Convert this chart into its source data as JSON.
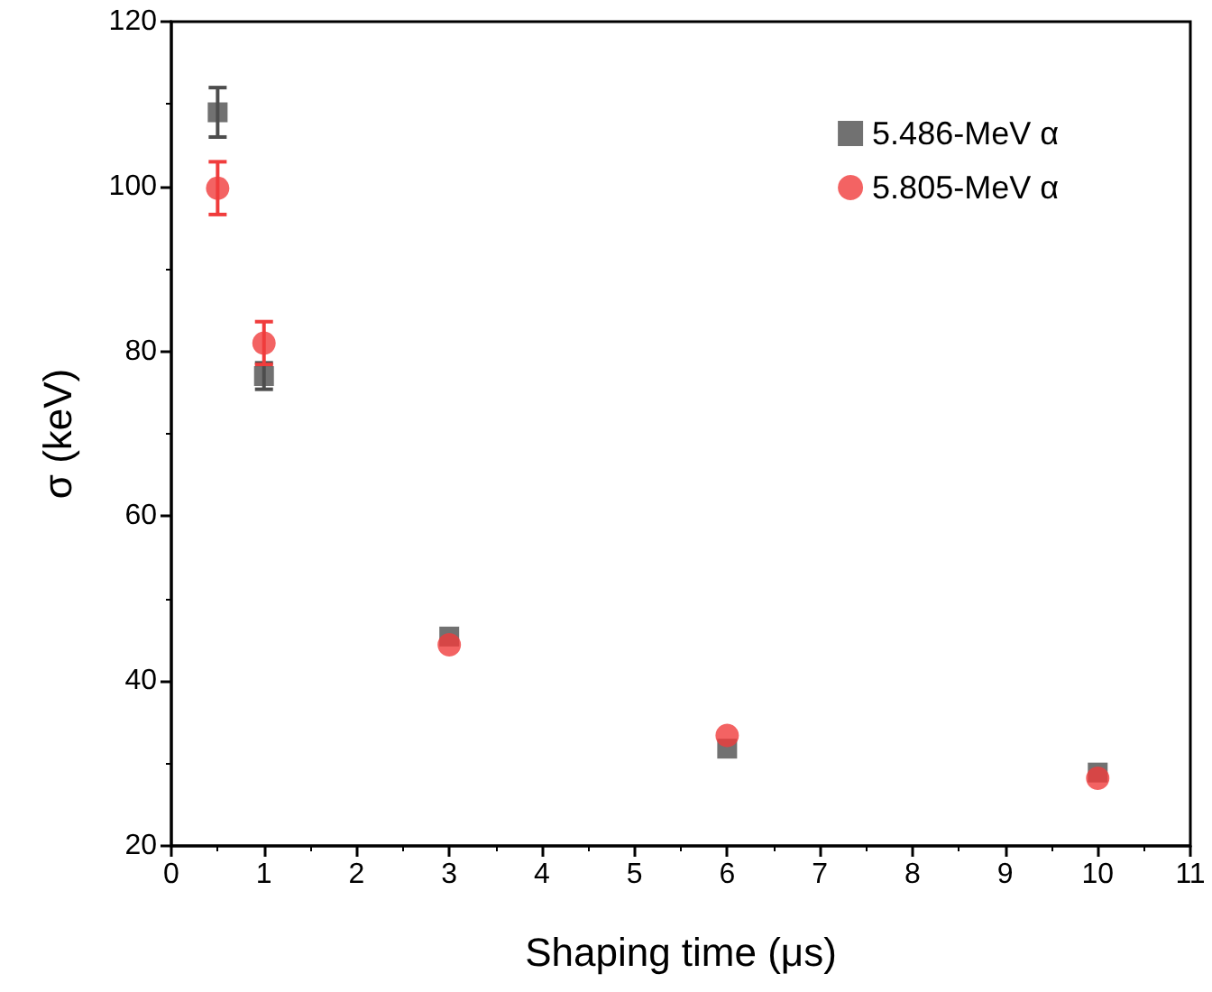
{
  "chart_data": {
    "type": "scatter",
    "xlabel": "Shaping time (μs)",
    "ylabel": "σ (keV)",
    "xlim": [
      0,
      11
    ],
    "xticks": [
      0,
      1,
      2,
      3,
      4,
      5,
      6,
      7,
      8,
      9,
      10,
      11
    ],
    "ylim": [
      20,
      120
    ],
    "yticks": [
      20,
      40,
      60,
      80,
      100,
      120
    ],
    "grid": false,
    "legend": "top right",
    "series": [
      {
        "name": "5.486-MeV α",
        "color": "#4d4d4d",
        "marker": "square",
        "x": [
          0.5,
          1,
          3,
          6,
          10
        ],
        "values": [
          109.0,
          77.0,
          45.4,
          31.8,
          28.9
        ],
        "errors": [
          3,
          1.6,
          null,
          null,
          null
        ]
      },
      {
        "name": "5.805-MeV α",
        "color": "#f03c3c",
        "marker": "circle",
        "x": [
          0.5,
          1,
          3,
          6,
          10
        ],
        "values": [
          99.8,
          81.0,
          44.4,
          33.4,
          28.2
        ],
        "errors": [
          3.2,
          2.6,
          null,
          null,
          null
        ]
      }
    ]
  }
}
